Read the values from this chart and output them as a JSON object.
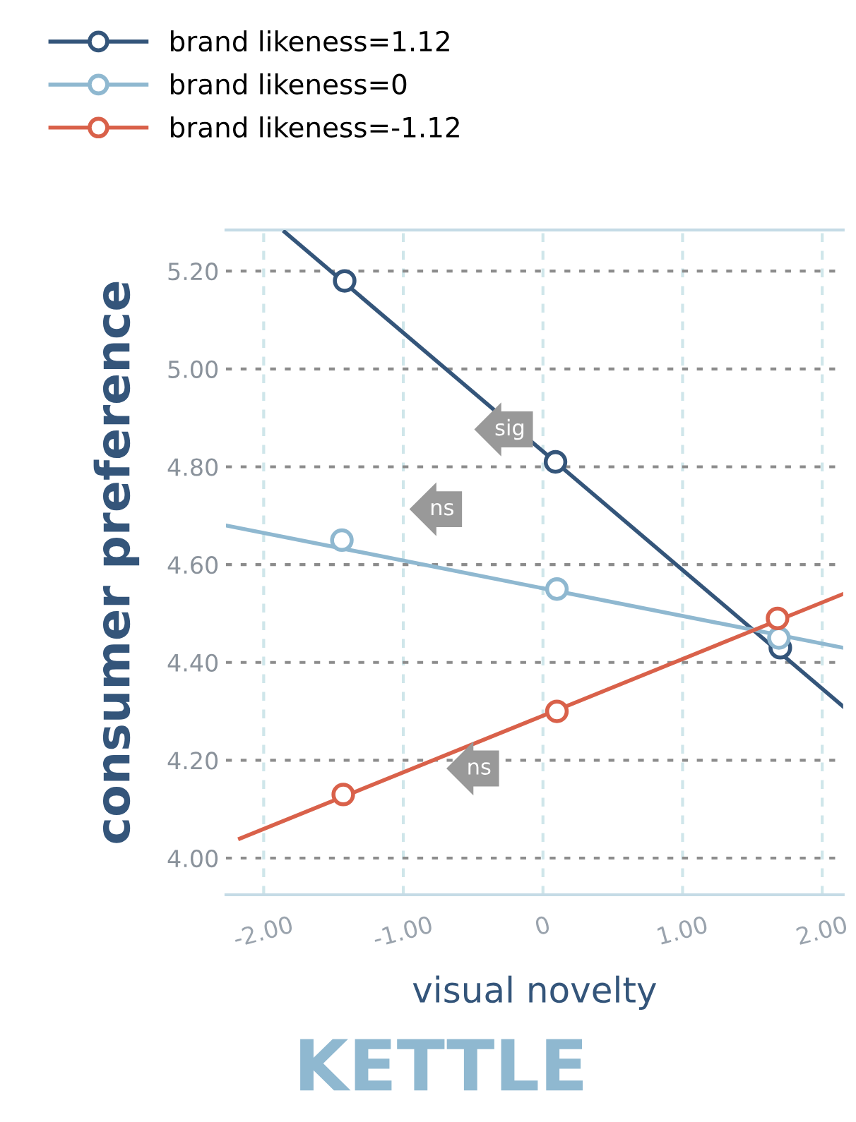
{
  "chart_data": {
    "type": "scatter",
    "title": "KETTLE",
    "xlabel": "visual novelty",
    "ylabel": "consumer preference",
    "xlim": [
      -2.27,
      2.15
    ],
    "ylim": [
      3.925,
      5.284
    ],
    "xticks": [
      {
        "value": -2,
        "label": "-2.00"
      },
      {
        "value": -1,
        "label": "-1.00"
      },
      0,
      {
        "value": 1,
        "label": "1.00"
      },
      {
        "value": 2,
        "label": "2.00"
      }
    ],
    "yticks": [
      {
        "value": 4,
        "label": "4.00"
      },
      {
        "value": 4.2,
        "label": "4.20"
      },
      {
        "value": 4.4,
        "label": "4.40"
      },
      {
        "value": 4.6,
        "label": "4.60"
      },
      {
        "value": 4.8,
        "label": "4.80"
      },
      {
        "value": 5,
        "label": "5.00"
      },
      {
        "value": 5.2,
        "label": "5.20"
      }
    ],
    "grid": true,
    "legend": "top left",
    "series": [
      {
        "name": "brand likeness=1.12",
        "color": "#34557a",
        "marker": "circle",
        "x": [
          -1.42,
          0.09,
          1.7
        ],
        "values": [
          5.18,
          4.81,
          4.43
        ]
      },
      {
        "name": "brand likeness=0",
        "color": "#8fb8d0",
        "marker": "circle",
        "x": [
          -1.44,
          0.1,
          1.69
        ],
        "values": [
          4.65,
          4.55,
          4.45
        ]
      },
      {
        "name": "brand likeness=-1.12",
        "color": "#d9614a",
        "marker": "circle",
        "x": [
          -1.43,
          0.1,
          1.68
        ],
        "values": [
          4.13,
          4.3,
          4.49
        ]
      },
      {
        "color": "#34557a",
        "type": "line",
        "x": [
          -1.85,
          2.15
        ],
        "values": [
          5.28,
          4.31
        ]
      },
      {
        "color": "#8fb8d0",
        "type": "line",
        "x": [
          -2.27,
          2.15
        ],
        "values": [
          4.68,
          4.43
        ]
      },
      {
        "color": "#d9614a",
        "type": "line",
        "x": [
          -2.17,
          2.15
        ],
        "values": [
          4.04,
          4.54
        ]
      }
    ],
    "annotations": [
      "sig",
      "ns",
      "ns"
    ]
  }
}
